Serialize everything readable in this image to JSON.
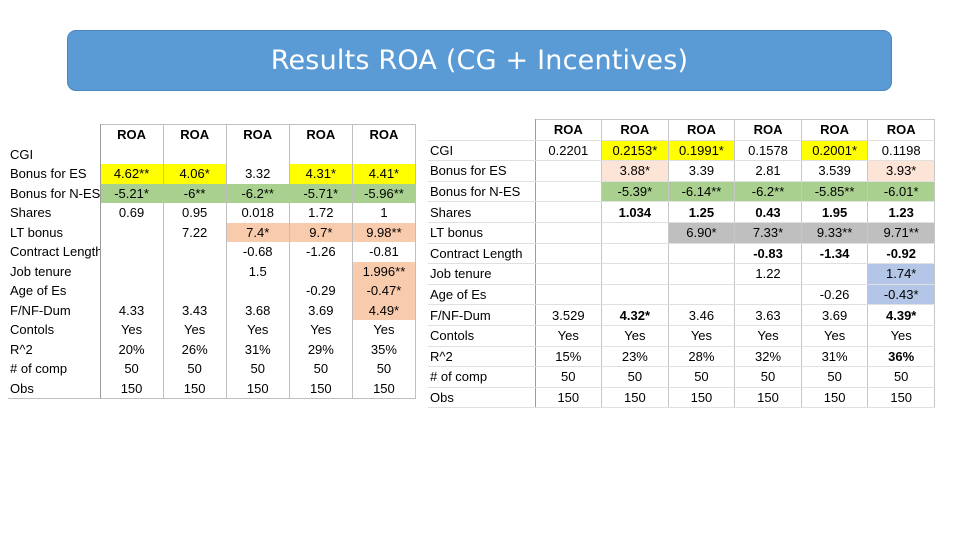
{
  "title": "Results ROA (CG + Incentives)",
  "left_table": {
    "headers": [
      "",
      "ROA",
      "ROA",
      "ROA",
      "ROA",
      "ROA"
    ],
    "rows": [
      {
        "label": "CGI",
        "cells": [
          "",
          "",
          "",
          "",
          ""
        ]
      },
      {
        "label": "Bonus for ES",
        "cells": [
          "4.62**",
          "4.06*",
          "3.32",
          "4.31*",
          "4.41*"
        ]
      },
      {
        "label": "Bonus for N-ES",
        "cells": [
          "-5.21*",
          "-6**",
          "-6.2**",
          "-5.71*",
          "-5.96**"
        ]
      },
      {
        "label": "Shares",
        "cells": [
          "0.69",
          "0.95",
          "0.018",
          "1.72",
          "1"
        ]
      },
      {
        "label": "LT bonus",
        "cells": [
          "",
          "7.22",
          "7.4*",
          "9.7*",
          "9.98**"
        ]
      },
      {
        "label": "Contract Length",
        "cells": [
          "",
          "",
          "-0.68",
          "-1.26",
          "-0.81"
        ]
      },
      {
        "label": "Job tenure",
        "cells": [
          "",
          "",
          "1.5",
          "",
          "1.996**"
        ]
      },
      {
        "label": "Age of Es",
        "cells": [
          "",
          "",
          "",
          "-0.29",
          "-0.47*"
        ]
      },
      {
        "label": "F/NF-Dum",
        "cells": [
          "4.33",
          "3.43",
          "3.68",
          "3.69",
          "4.49*"
        ]
      },
      {
        "label": "Contols",
        "cells": [
          "Yes",
          "Yes",
          "Yes",
          "Yes",
          "Yes"
        ]
      },
      {
        "label": "R^2",
        "cells": [
          "20%",
          "26%",
          "31%",
          "29%",
          "35%"
        ]
      },
      {
        "label": "# of comp",
        "cells": [
          "50",
          "50",
          "50",
          "50",
          "50"
        ]
      },
      {
        "label": "Obs",
        "cells": [
          "150",
          "150",
          "150",
          "150",
          "150"
        ]
      }
    ]
  },
  "right_table": {
    "headers": [
      "",
      "ROA",
      "ROA",
      "ROA",
      "ROA",
      "ROA",
      "ROA"
    ],
    "rows": [
      {
        "label": "CGI",
        "cells": [
          "0.2201",
          "0.2153*",
          "0.1991*",
          "0.1578",
          "0.2001*",
          "0.1198"
        ]
      },
      {
        "label": "Bonus for ES",
        "cells": [
          "",
          "3.88*",
          "3.39",
          "2.81",
          "3.539",
          "3.93*"
        ]
      },
      {
        "label": "Bonus for N-ES",
        "cells": [
          "",
          "-5.39*",
          "-6.14**",
          "-6.2**",
          "-5.85**",
          "-6.01*"
        ]
      },
      {
        "label": "Shares",
        "cells": [
          "",
          "1.034",
          "1.25",
          "0.43",
          "1.95",
          "1.23"
        ]
      },
      {
        "label": "LT bonus",
        "cells": [
          "",
          "",
          "6.90*",
          "7.33*",
          "9.33**",
          "9.71**"
        ]
      },
      {
        "label": "Contract Length",
        "cells": [
          "",
          "",
          "",
          "-0.83",
          "-1.34",
          "-0.92"
        ]
      },
      {
        "label": "Job tenure",
        "cells": [
          "",
          "",
          "",
          "1.22",
          "",
          "1.74*"
        ]
      },
      {
        "label": "Age of Es",
        "cells": [
          "",
          "",
          "",
          "",
          "-0.26",
          "-0.43*"
        ]
      },
      {
        "label": "F/NF-Dum",
        "cells": [
          "3.529",
          "4.32*",
          "3.46",
          "3.63",
          "3.69",
          "4.39*"
        ]
      },
      {
        "label": "Contols",
        "cells": [
          "Yes",
          "Yes",
          "Yes",
          "Yes",
          "Yes",
          "Yes"
        ]
      },
      {
        "label": "R^2",
        "cells": [
          "15%",
          "23%",
          "28%",
          "32%",
          "31%",
          "36%"
        ]
      },
      {
        "label": "# of comp",
        "cells": [
          "50",
          "50",
          "50",
          "50",
          "50",
          "50"
        ]
      },
      {
        "label": "Obs",
        "cells": [
          "150",
          "150",
          "150",
          "150",
          "150",
          "150"
        ]
      }
    ]
  },
  "colors": {
    "title_bar": "#5b9bd5",
    "yellow_highlight": "#ffff00",
    "green_highlight": "#a9d08e",
    "orange_highlight": "#f8cbad",
    "peach_highlight": "#fce4d6",
    "gray_highlight": "#bfbfbf",
    "blue_highlight": "#b4c6e7"
  }
}
